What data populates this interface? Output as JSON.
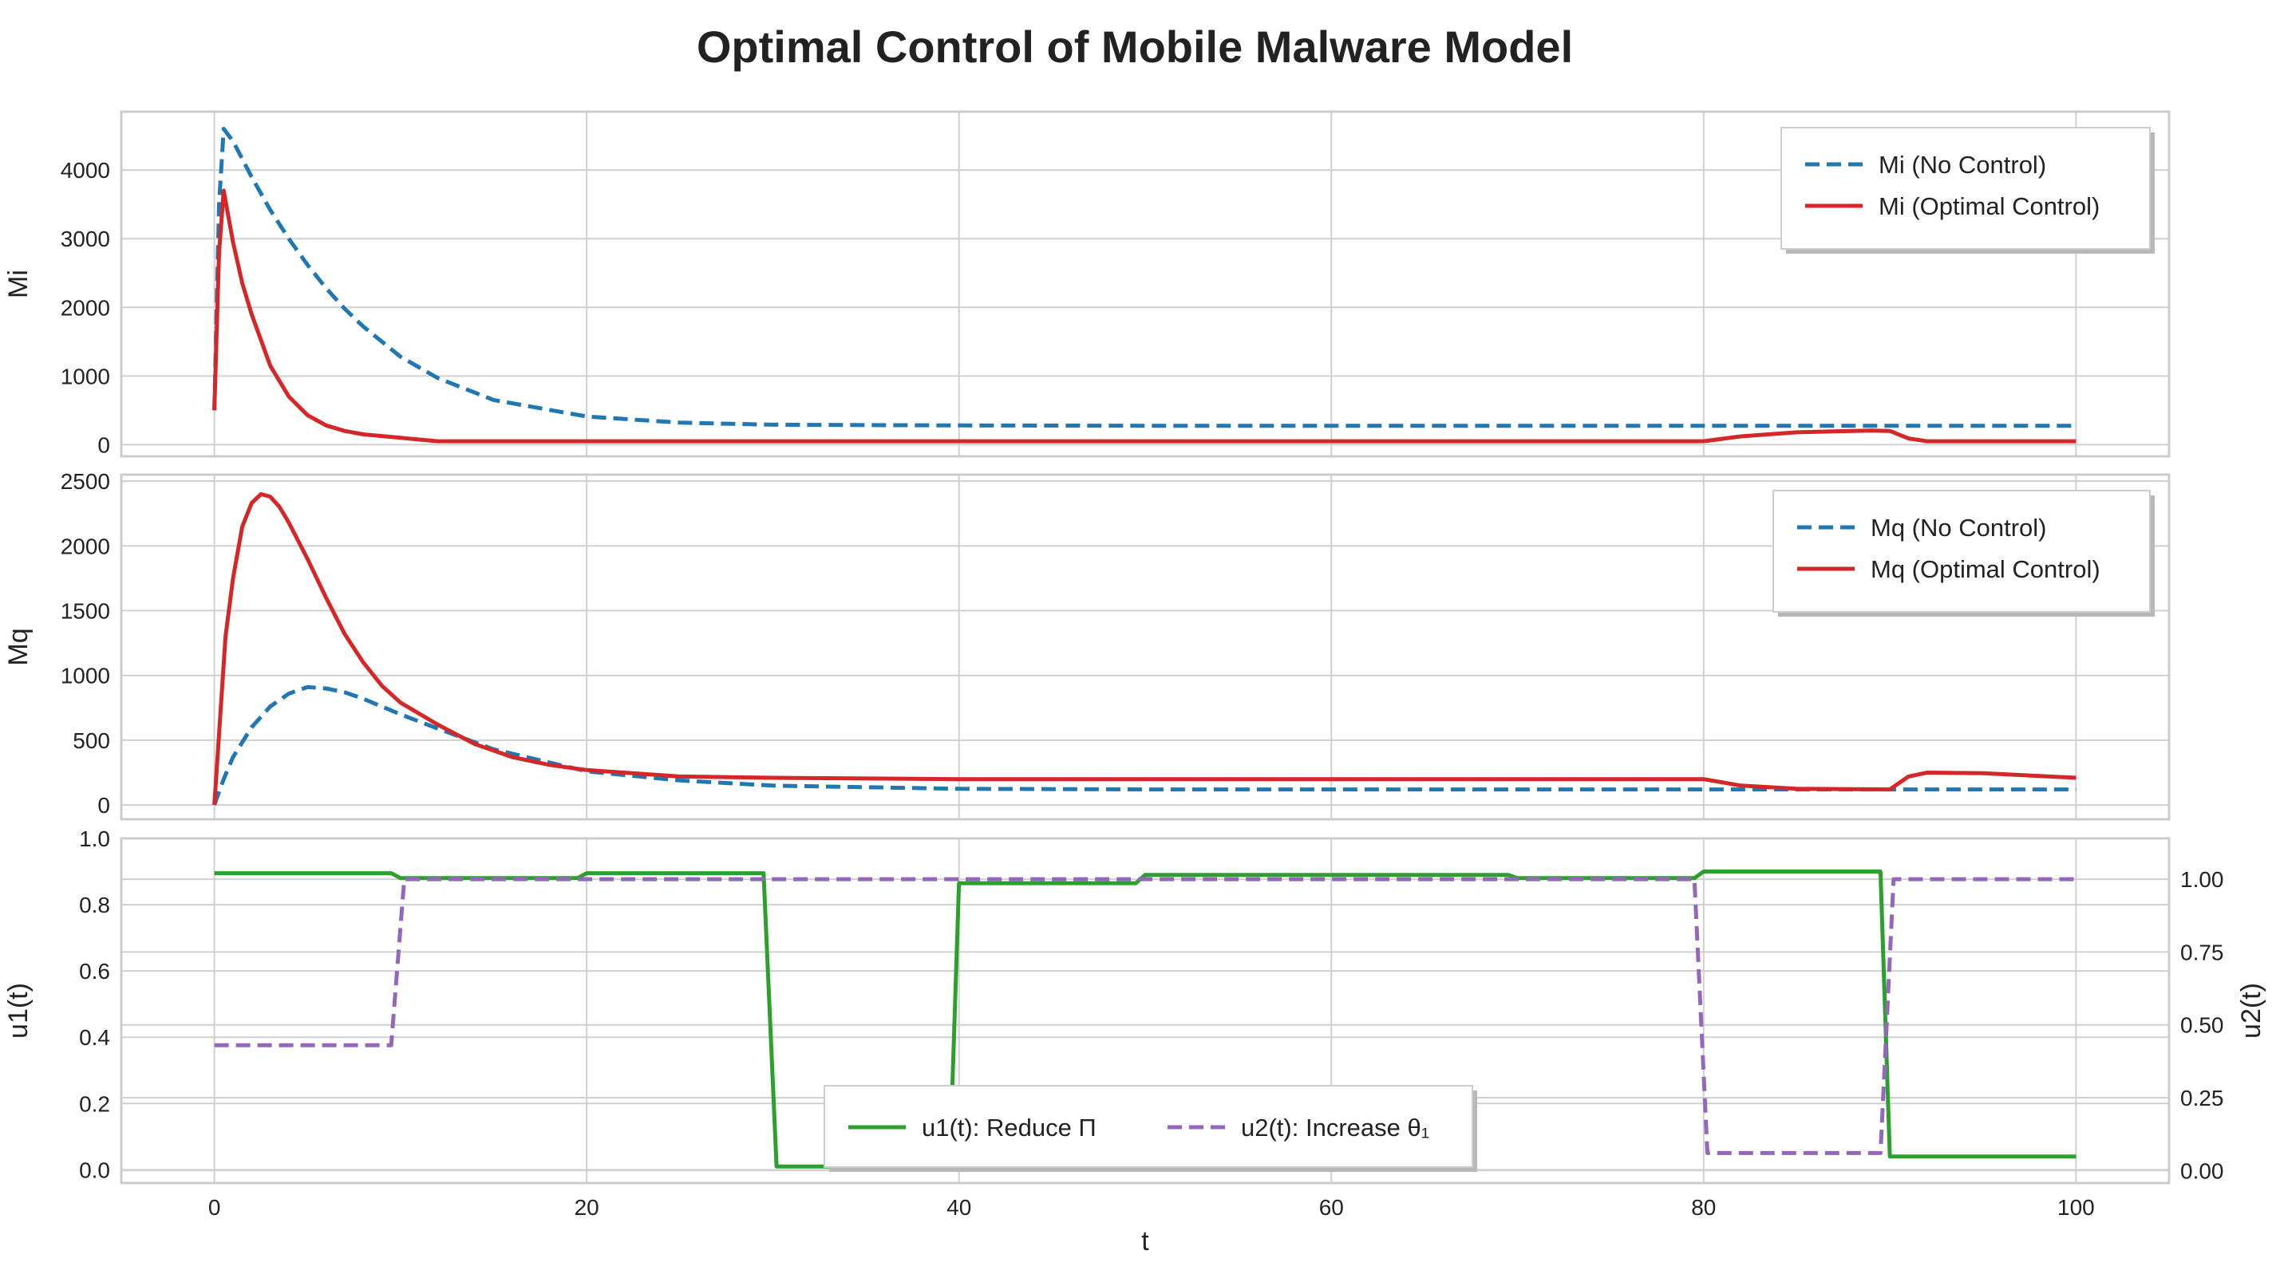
{
  "title": "Optimal Control of Mobile Malware Model",
  "colors": {
    "blue": "#1f77b4",
    "red": "#d62728",
    "green": "#2ca02c",
    "purple": "#9467bd",
    "grid": "#d0d0d0",
    "frame": "#cccccc"
  },
  "chart_data": [
    {
      "type": "line",
      "id": "mi",
      "ylabel": "Mi",
      "xlim": [
        -5,
        105
      ],
      "ylim": [
        -170,
        4850
      ],
      "yticks": [
        0,
        1000,
        2000,
        3000,
        4000
      ],
      "legend": "top-right",
      "grid": true,
      "series": [
        {
          "name": "Mi (No Control)",
          "color": "#1f77b4",
          "style": "dashed",
          "x": [
            0,
            0.25,
            0.5,
            1,
            2,
            3,
            4,
            5,
            6,
            7,
            8,
            10,
            12,
            15,
            20,
            25,
            30,
            40,
            50,
            60,
            70,
            80,
            90,
            100
          ],
          "y": [
            500,
            3500,
            4600,
            4420,
            3900,
            3420,
            3000,
            2620,
            2280,
            1980,
            1720,
            1280,
            970,
            650,
            410,
            320,
            290,
            280,
            275,
            275,
            275,
            275,
            275,
            275
          ]
        },
        {
          "name": "Mi (Optimal Control)",
          "color": "#d62728",
          "style": "solid",
          "x": [
            0,
            0.25,
            0.5,
            1,
            1.5,
            2,
            3,
            4,
            5,
            6,
            7,
            8,
            10,
            12,
            20,
            30,
            40,
            50,
            60,
            70,
            80,
            82,
            85,
            88,
            89,
            90,
            91,
            92,
            95,
            100
          ],
          "y": [
            500,
            2800,
            3700,
            2950,
            2350,
            1900,
            1150,
            700,
            430,
            280,
            200,
            150,
            100,
            50,
            50,
            50,
            50,
            50,
            50,
            50,
            50,
            120,
            180,
            200,
            205,
            200,
            90,
            50,
            50,
            50
          ]
        }
      ],
      "xticks": [
        0,
        20,
        40,
        60,
        80,
        100
      ]
    },
    {
      "type": "line",
      "id": "mq",
      "ylabel": "Mq",
      "xlim": [
        -5,
        105
      ],
      "ylim": [
        -110,
        2550
      ],
      "yticks": [
        0,
        500,
        1000,
        1500,
        2000,
        2500
      ],
      "legend": "top-right",
      "grid": true,
      "series": [
        {
          "name": "Mq (No Control)",
          "color": "#1f77b4",
          "style": "dashed",
          "x": [
            0,
            0.5,
            1,
            2,
            3,
            4,
            5,
            6,
            7,
            8,
            10,
            12,
            15,
            20,
            25,
            30,
            40,
            50,
            60,
            70,
            80,
            90,
            100
          ],
          "y": [
            0,
            200,
            370,
            600,
            760,
            860,
            910,
            900,
            870,
            820,
            700,
            590,
            430,
            260,
            190,
            150,
            125,
            120,
            120,
            120,
            120,
            120,
            120
          ]
        },
        {
          "name": "Mq (Optimal Control)",
          "color": "#d62728",
          "style": "solid",
          "x": [
            0,
            0.3,
            0.6,
            1,
            1.5,
            2,
            2.5,
            3,
            3.5,
            4,
            5,
            6,
            7,
            8,
            9,
            10,
            12,
            14,
            16,
            18,
            20,
            25,
            30,
            40,
            50,
            60,
            70,
            80,
            82,
            85,
            90,
            91,
            92,
            95,
            100
          ],
          "y": [
            0,
            650,
            1300,
            1750,
            2150,
            2330,
            2400,
            2380,
            2300,
            2180,
            1900,
            1600,
            1320,
            1100,
            920,
            790,
            620,
            470,
            370,
            310,
            270,
            220,
            210,
            200,
            200,
            200,
            200,
            200,
            150,
            125,
            120,
            220,
            250,
            245,
            210
          ]
        }
      ],
      "xticks": [
        0,
        20,
        40,
        60,
        80,
        100
      ]
    },
    {
      "type": "line",
      "id": "controls",
      "ylabel": "u1(t)",
      "ylabel_right": "u2(t)",
      "xlabel": "t",
      "xlim": [
        -5,
        105
      ],
      "ylim": [
        -0.04,
        1.0
      ],
      "yticks": [
        0.0,
        0.2,
        0.4,
        0.6,
        0.8,
        1.0
      ],
      "ylim_right": [
        -0.043,
        1.14
      ],
      "yticks_right": [
        0.0,
        0.25,
        0.5,
        0.75,
        1.0
      ],
      "legend": "bottom-center",
      "grid": true,
      "series": [
        {
          "name": "u1(t): Reduce Π",
          "color": "#2ca02c",
          "style": "solid",
          "axis": "left",
          "x": [
            0,
            9.5,
            10,
            19.5,
            20,
            29.5,
            30.2,
            39.5,
            40,
            49.5,
            50,
            69.5,
            70,
            79.5,
            80,
            89.5,
            90,
            100
          ],
          "y": [
            0.895,
            0.895,
            0.88,
            0.88,
            0.895,
            0.895,
            0.01,
            0.01,
            0.865,
            0.865,
            0.89,
            0.89,
            0.88,
            0.88,
            0.9,
            0.9,
            0.04,
            0.04
          ]
        },
        {
          "name": "u2(t): Increase θ₁",
          "color": "#9467bd",
          "style": "dashed",
          "axis": "right",
          "x": [
            0,
            9.5,
            10.2,
            79.5,
            80.2,
            89.5,
            90.2,
            100
          ],
          "y": [
            0.43,
            0.43,
            1.0,
            1.0,
            0.06,
            0.06,
            1.0,
            1.0
          ]
        }
      ],
      "xticks": [
        0,
        20,
        40,
        60,
        80,
        100
      ]
    }
  ]
}
